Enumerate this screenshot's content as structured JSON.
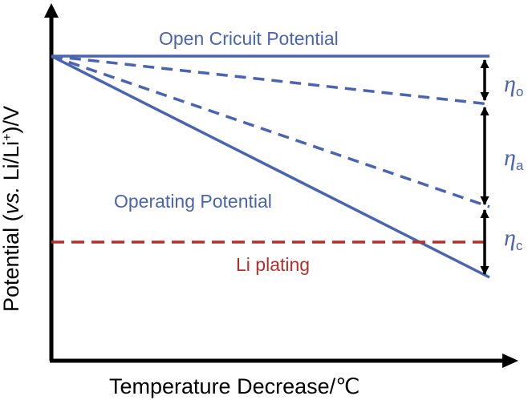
{
  "labels": {
    "open_circuit": "Open Cricuit Potential",
    "operating": "Operating Potential",
    "li_plating": "Li plating",
    "x_axis": "Temperature Decrease/℃",
    "y_axis_prefix": "Potential (",
    "y_axis_vs": "vs.",
    "y_axis_li": " Li/Li",
    "y_axis_plus": "+",
    "y_axis_suffix": ")/V"
  },
  "overpotentials": [
    {
      "symbol": "η",
      "subscript": "o"
    },
    {
      "symbol": "η",
      "subscript": "a"
    },
    {
      "symbol": "η",
      "subscript": "c"
    }
  ],
  "colors": {
    "potential_lines": "#4a64b0",
    "li_plating": "#b5302a",
    "axes": "#000000",
    "arrows": "#000000"
  }
}
